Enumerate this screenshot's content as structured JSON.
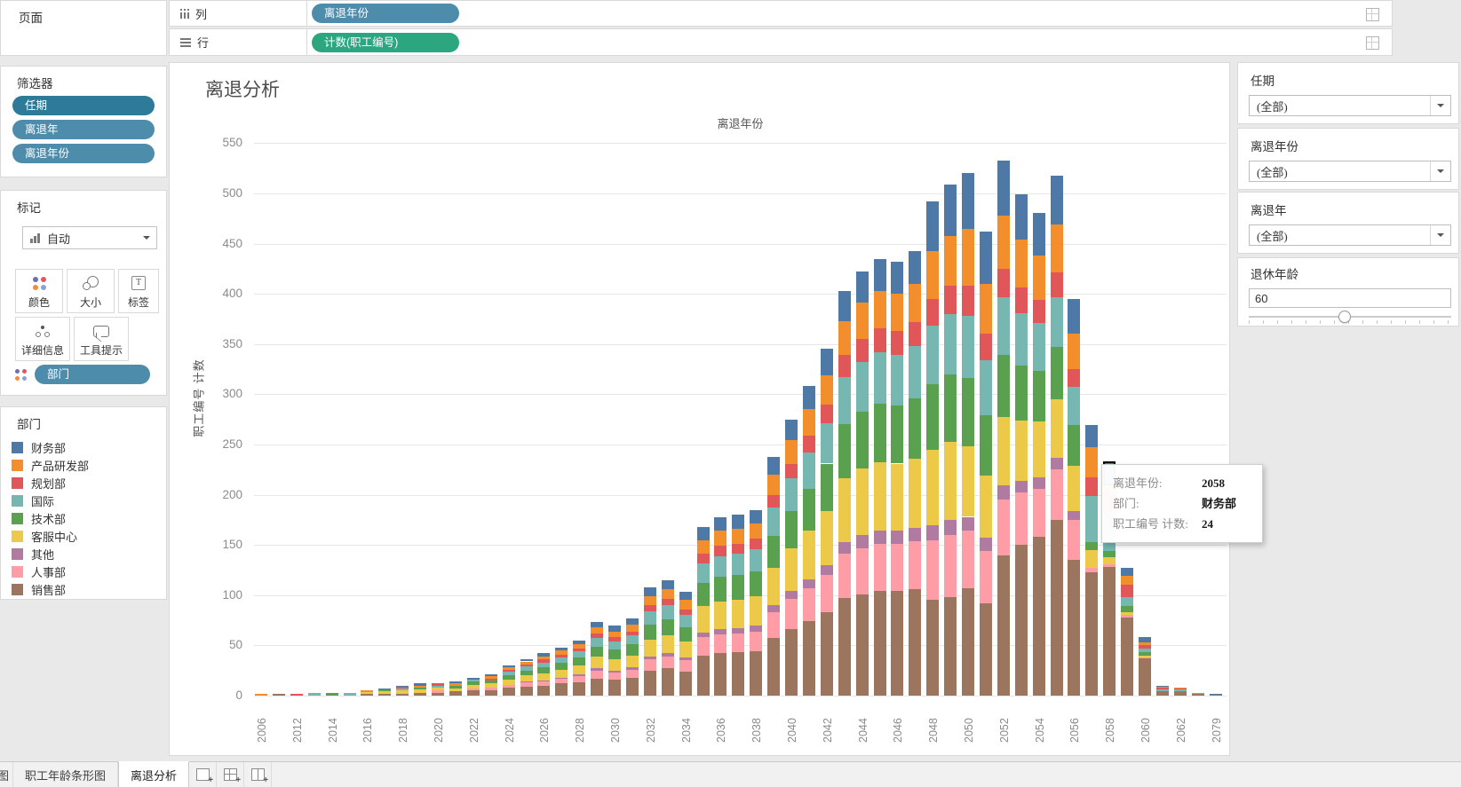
{
  "left_panel": {
    "pages_label": "页面"
  },
  "shelves": {
    "columns_label": "列",
    "rows_label": "行",
    "columns_pills": [
      {
        "label": "离退年份",
        "color": "#4e8cab"
      }
    ],
    "rows_pills": [
      {
        "label": "计数(职工编号)",
        "color": "#2ca67e"
      }
    ]
  },
  "filters_card": {
    "title": "筛选器",
    "pills": [
      {
        "label": "任期",
        "color": "#2e7b99"
      },
      {
        "label": "离退年",
        "color": "#4e8cab"
      },
      {
        "label": "离退年份",
        "color": "#4e8cab"
      }
    ]
  },
  "marks_card": {
    "title": "标记",
    "mark_type": "自动",
    "buttons": {
      "color": "颜色",
      "size": "大小",
      "label": "标签",
      "detail": "详细信息",
      "tooltip": "工具提示"
    },
    "encoding_pill": {
      "label": "部门",
      "color": "#4e8cab"
    }
  },
  "legend_card": {
    "title": "部门",
    "items": [
      {
        "name": "财务部",
        "color": "#4e79a7"
      },
      {
        "name": "产品研发部",
        "color": "#f28e2b"
      },
      {
        "name": "规划部",
        "color": "#e15759"
      },
      {
        "name": "国际",
        "color": "#76b7b2"
      },
      {
        "name": "技术部",
        "color": "#59a14f"
      },
      {
        "name": "客服中心",
        "color": "#edc949"
      },
      {
        "name": "其他",
        "color": "#b07aa1"
      },
      {
        "name": "人事部",
        "color": "#ff9da7"
      },
      {
        "name": "销售部",
        "color": "#9c755f"
      }
    ]
  },
  "chart": {
    "title": "离退分析",
    "column_header": "离退年份",
    "y_axis_title": "职工编号 计数"
  },
  "chart_data": {
    "type": "stacked-bar",
    "title": "离退分析",
    "xlabel": "离退年份",
    "ylabel": "职工编号 计数",
    "ylim": [
      0,
      550
    ],
    "ytick_step": 50,
    "grid": "horizontal",
    "x_labels_every": 2,
    "x_label_angle": -90,
    "years": [
      2006,
      2011,
      2012,
      2013,
      2014,
      2015,
      2016,
      2017,
      2018,
      2019,
      2020,
      2021,
      2022,
      2023,
      2024,
      2025,
      2026,
      2027,
      2028,
      2029,
      2030,
      2031,
      2032,
      2033,
      2034,
      2035,
      2036,
      2037,
      2038,
      2039,
      2040,
      2041,
      2042,
      2043,
      2044,
      2045,
      2046,
      2047,
      2048,
      2049,
      2050,
      2051,
      2052,
      2053,
      2054,
      2055,
      2056,
      2057,
      2058,
      2059,
      2060,
      2061,
      2062,
      2063,
      2079
    ],
    "stack_order_bottom_to_top": [
      "销售部",
      "人事部",
      "其他",
      "客服中心",
      "技术部",
      "国际",
      "规划部",
      "产品研发部",
      "财务部"
    ],
    "series": [
      {
        "name": "财务部",
        "color": "#4e79a7",
        "values": [
          0,
          0,
          0,
          0,
          0,
          0,
          0,
          1,
          1,
          2,
          0,
          2,
          2,
          2,
          2,
          2,
          3,
          3,
          4,
          5,
          6,
          6,
          9,
          9,
          8,
          13,
          14,
          14,
          14,
          18,
          21,
          23,
          26,
          30,
          31,
          32,
          32,
          33,
          49,
          51,
          55,
          52,
          55,
          45,
          43,
          49,
          35,
          22,
          24,
          8,
          5,
          1,
          0,
          0,
          1
        ]
      },
      {
        "name": "产品研发部",
        "color": "#f28e2b",
        "values": [
          2,
          0,
          0,
          1,
          0,
          0,
          1,
          0,
          0,
          2,
          0,
          2,
          0,
          2,
          2,
          3,
          3,
          4,
          4,
          6,
          6,
          7,
          9,
          10,
          9,
          14,
          15,
          15,
          15,
          20,
          23,
          26,
          29,
          34,
          36,
          37,
          37,
          38,
          48,
          50,
          57,
          50,
          53,
          48,
          44,
          48,
          35,
          30,
          7,
          9,
          3,
          1,
          1,
          0,
          0
        ]
      },
      {
        "name": "规划部",
        "color": "#e15759",
        "values": [
          0,
          0,
          2,
          0,
          0,
          0,
          0,
          0,
          2,
          0,
          2,
          0,
          0,
          2,
          2,
          2,
          3,
          3,
          3,
          5,
          4,
          4,
          6,
          6,
          6,
          9,
          10,
          10,
          10,
          13,
          15,
          17,
          19,
          22,
          23,
          24,
          24,
          24,
          27,
          28,
          30,
          26,
          28,
          25,
          23,
          24,
          18,
          18,
          20,
          12,
          3,
          2,
          1,
          0,
          0
        ]
      },
      {
        "name": "国际",
        "color": "#76b7b2",
        "values": [
          0,
          0,
          0,
          2,
          0,
          3,
          0,
          0,
          2,
          0,
          2,
          0,
          2,
          0,
          4,
          4,
          5,
          5,
          6,
          8,
          8,
          9,
          13,
          14,
          12,
          20,
          21,
          21,
          22,
          28,
          32,
          36,
          40,
          47,
          49,
          51,
          50,
          52,
          58,
          60,
          62,
          55,
          58,
          52,
          48,
          50,
          38,
          46,
          38,
          9,
          4,
          1,
          1,
          1,
          0
        ]
      },
      {
        "name": "技术部",
        "color": "#59a14f",
        "values": [
          0,
          0,
          0,
          0,
          3,
          0,
          0,
          2,
          0,
          2,
          0,
          3,
          3,
          3,
          4,
          5,
          6,
          7,
          8,
          10,
          10,
          11,
          15,
          16,
          14,
          23,
          24,
          25,
          25,
          32,
          37,
          42,
          47,
          54,
          57,
          59,
          58,
          60,
          65,
          67,
          68,
          60,
          62,
          55,
          50,
          52,
          40,
          8,
          6,
          6,
          3,
          0,
          1,
          0,
          0
        ]
      },
      {
        "name": "客服中心",
        "color": "#edc949",
        "values": [
          0,
          0,
          0,
          0,
          0,
          0,
          2,
          2,
          3,
          3,
          3,
          3,
          4,
          4,
          5,
          6,
          7,
          8,
          9,
          12,
          11,
          12,
          17,
          18,
          16,
          26,
          28,
          28,
          29,
          37,
          43,
          48,
          54,
          63,
          66,
          68,
          67,
          69,
          75,
          78,
          70,
          62,
          68,
          60,
          56,
          58,
          45,
          18,
          7,
          3,
          2,
          0,
          0,
          0,
          0
        ]
      },
      {
        "name": "其他",
        "color": "#b07aa1",
        "values": [
          0,
          0,
          0,
          0,
          0,
          0,
          0,
          0,
          0,
          0,
          0,
          0,
          0,
          0,
          0,
          1,
          1,
          1,
          2,
          2,
          2,
          2,
          3,
          3,
          3,
          5,
          5,
          5,
          6,
          7,
          8,
          9,
          10,
          12,
          13,
          13,
          13,
          13,
          15,
          15,
          14,
          13,
          14,
          12,
          11,
          12,
          9,
          0,
          0,
          0,
          0,
          0,
          0,
          0,
          0
        ]
      },
      {
        "name": "人事部",
        "color": "#ff9da7",
        "values": [
          0,
          0,
          0,
          0,
          0,
          0,
          0,
          0,
          0,
          0,
          2,
          0,
          2,
          3,
          3,
          4,
          4,
          5,
          6,
          8,
          7,
          8,
          11,
          12,
          11,
          18,
          19,
          19,
          20,
          26,
          30,
          33,
          37,
          44,
          46,
          47,
          47,
          48,
          60,
          62,
          57,
          52,
          55,
          52,
          48,
          50,
          40,
          4,
          3,
          2,
          1,
          0,
          0,
          0,
          0
        ]
      },
      {
        "name": "销售部",
        "color": "#9c755f",
        "values": [
          0,
          2,
          0,
          0,
          0,
          0,
          2,
          2,
          2,
          3,
          3,
          4,
          5,
          5,
          8,
          9,
          10,
          12,
          13,
          17,
          16,
          18,
          25,
          27,
          24,
          40,
          42,
          43,
          44,
          57,
          66,
          74,
          83,
          97,
          101,
          104,
          104,
          106,
          95,
          98,
          107,
          92,
          140,
          150,
          158,
          175,
          135,
          123,
          128,
          78,
          37,
          5,
          4,
          2,
          1
        ]
      }
    ]
  },
  "highlight": {
    "year": 2058,
    "series": "财务部"
  },
  "tooltip": {
    "rows": [
      {
        "label": "离退年份:",
        "value": "2058"
      },
      {
        "label": "部门:",
        "value": "财务部"
      },
      {
        "label": "职工编号 计数:",
        "value": "24"
      }
    ]
  },
  "right_panel": {
    "filters": [
      {
        "title": "任期",
        "value": "(全部)"
      },
      {
        "title": "离退年份",
        "value": "(全部)"
      },
      {
        "title": "离退年",
        "value": "(全部)"
      }
    ],
    "slider_card": {
      "title": "退休年龄",
      "value": "60",
      "handle_pct": 47
    }
  },
  "tabs": {
    "overflow_tab": "图",
    "sheets": [
      {
        "label": "职工年龄条形图",
        "active": false
      },
      {
        "label": "离退分析",
        "active": true
      }
    ]
  }
}
